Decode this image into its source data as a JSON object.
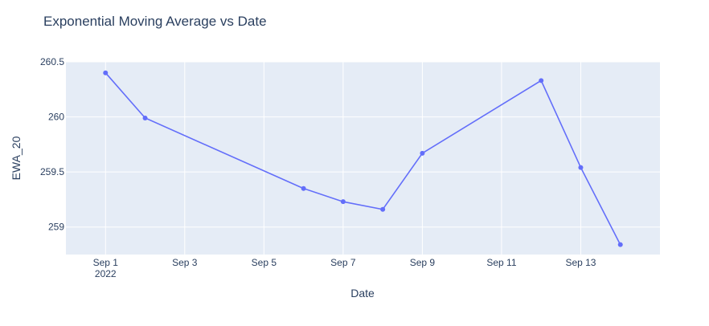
{
  "chart_data": {
    "type": "line",
    "title": "Exponential Moving Average vs Date",
    "xlabel": "Date",
    "ylabel": "EWA_20",
    "x": [
      "2022-09-01",
      "2022-09-02",
      "2022-09-06",
      "2022-09-07",
      "2022-09-08",
      "2022-09-09",
      "2022-09-12",
      "2022-09-13",
      "2022-09-14"
    ],
    "series": [
      {
        "values": [
          260.4,
          259.99,
          259.35,
          259.23,
          259.16,
          259.67,
          260.33,
          259.54,
          258.84
        ]
      }
    ],
    "xlim": [
      "2022-08-31",
      "2022-09-15"
    ],
    "ylim": [
      258.75,
      260.5
    ],
    "xticks": [
      {
        "date": "2022-09-01",
        "label": "Sep 1",
        "sublabel": "2022"
      },
      {
        "date": "2022-09-03",
        "label": "Sep 3"
      },
      {
        "date": "2022-09-05",
        "label": "Sep 5"
      },
      {
        "date": "2022-09-07",
        "label": "Sep 7"
      },
      {
        "date": "2022-09-09",
        "label": "Sep 9"
      },
      {
        "date": "2022-09-11",
        "label": "Sep 11"
      },
      {
        "date": "2022-09-13",
        "label": "Sep 13"
      }
    ],
    "yticks": [
      {
        "value": 259,
        "label": "259"
      },
      {
        "value": 259.5,
        "label": "259.5"
      },
      {
        "value": 260,
        "label": "260"
      },
      {
        "value": 260.5,
        "label": "260.5"
      }
    ],
    "grid": true,
    "line_color": "#636efa",
    "plot_bg": "#e5ecf6",
    "grid_color": "#ffffff"
  }
}
